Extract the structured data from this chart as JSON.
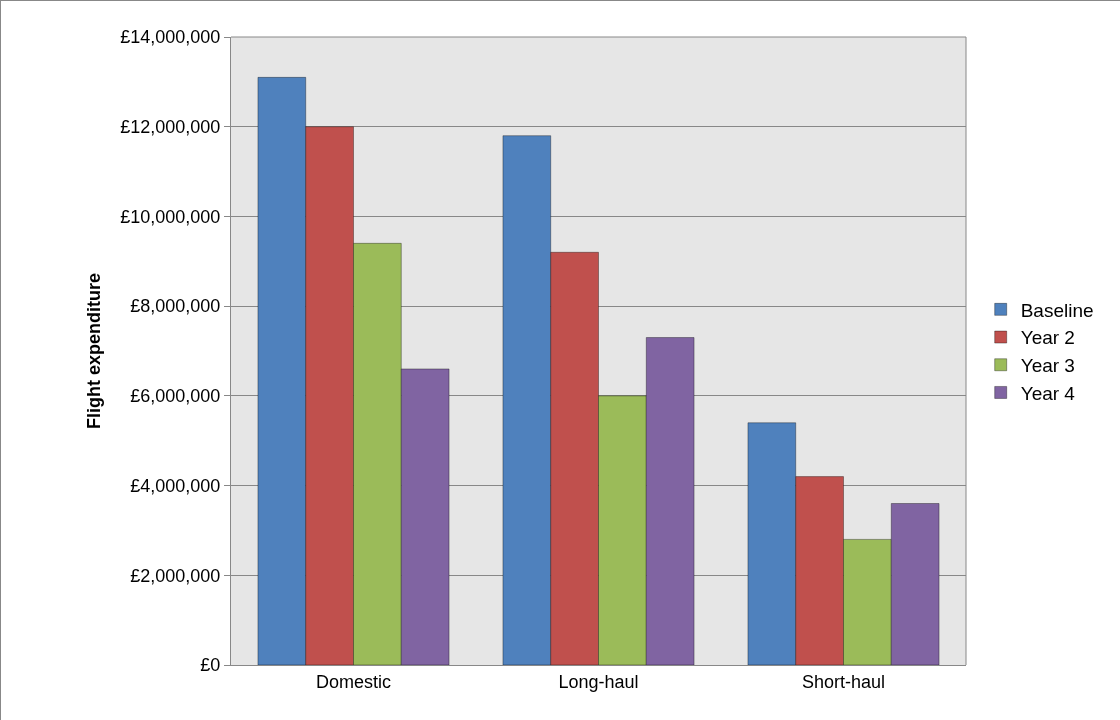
{
  "chart_data": {
    "type": "bar",
    "ylabel": "Flight expenditure",
    "categories": [
      "Domestic",
      "Long-haul",
      "Short-haul"
    ],
    "series": [
      {
        "name": "Baseline",
        "color": "#4f81bd",
        "values": [
          13100000,
          11800000,
          5400000
        ]
      },
      {
        "name": "Year 2",
        "color": "#c0504d",
        "values": [
          12000000,
          9200000,
          4200000
        ]
      },
      {
        "name": "Year 3",
        "color": "#9bbb59",
        "values": [
          9400000,
          6000000,
          2800000
        ]
      },
      {
        "name": "Year 4",
        "color": "#8064a2",
        "values": [
          6600000,
          7300000,
          3600000
        ]
      }
    ],
    "ylim": [
      0,
      14000000
    ],
    "yticks": [
      {
        "value": 0,
        "label": "£0"
      },
      {
        "value": 2000000,
        "label": "£2,000,000"
      },
      {
        "value": 4000000,
        "label": "£4,000,000"
      },
      {
        "value": 6000000,
        "label": "£6,000,000"
      },
      {
        "value": 8000000,
        "label": "£8,000,000"
      },
      {
        "value": 10000000,
        "label": "£10,000,000"
      },
      {
        "value": 12000000,
        "label": "£12,000,000"
      },
      {
        "value": 14000000,
        "label": "£14,000,000"
      }
    ],
    "grid": "y",
    "legend": "right"
  }
}
